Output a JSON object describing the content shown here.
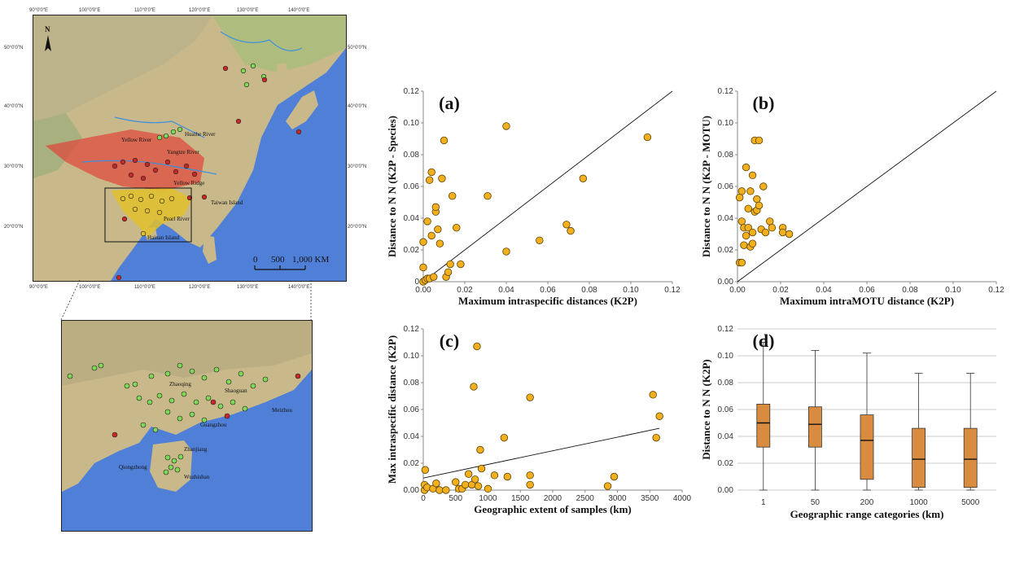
{
  "colors": {
    "point_fill": "#f2b01e",
    "point_stroke": "#5a4000",
    "box_fill": "#d98c3f",
    "sea": "#4f7fd6",
    "land": "#c9b98a",
    "range_red": "#e0453a",
    "range_yellow": "#e2c02a",
    "site_green": "#7ed957",
    "site_red": "#c62828"
  },
  "map_overview": {
    "top_lon_labels": [
      "90°0'0\"E",
      "100°0'0\"E",
      "110°0'0\"E",
      "120°0'0\"E",
      "130°0'0\"E",
      "140°0'0\"E"
    ],
    "bottom_lon_labels": [
      "90°0'0\"E",
      "100°0'0\"E",
      "110°0'0\"E",
      "120°0'0\"E",
      "130°0'0\"E",
      "140°0'0\"E"
    ],
    "lat_labels": [
      "50°0'0\"N",
      "40°0'0\"N",
      "30°0'0\"N",
      "20°0'0\"N"
    ],
    "north": "N",
    "places": [
      "Yellow River",
      "Huaihe River",
      "Yangtze River",
      "Yellow Ridge",
      "Taiwan Island",
      "Pearl River",
      "Hainan Island"
    ],
    "scale_labels": [
      "0",
      "500",
      "1,000 KM"
    ]
  },
  "map_inset": {
    "places": [
      "Qiongzhong",
      "Wuzhishan",
      "Zhanjiang",
      "Guangzhou",
      "Zhaoqing",
      "Shaoguan",
      "Meizhou"
    ]
  },
  "chart_data": [
    {
      "id": "a",
      "type": "scatter",
      "panel_label": "(a)",
      "xlabel": "Maximum intraspecific distances (K2P)",
      "ylabel": "Distance to N N (K2P - Species)",
      "xlim": [
        0,
        0.12
      ],
      "ylim": [
        0,
        0.12
      ],
      "xticks": [
        "0.00",
        "0.02",
        "0.04",
        "0.06",
        "0.08",
        "0.10",
        "0.12"
      ],
      "yticks": [
        "0",
        "0.02",
        "0.04",
        "0.06",
        "0.08",
        "0.10",
        "0.12"
      ],
      "line": [
        [
          0,
          0
        ],
        [
          0.12,
          0.12
        ]
      ],
      "points": [
        [
          0.0,
          0.0
        ],
        [
          0.001,
          0.001
        ],
        [
          0.002,
          0.002
        ],
        [
          0.003,
          0.002
        ],
        [
          0.005,
          0.003
        ],
        [
          0.0,
          0.009
        ],
        [
          0.0,
          0.025
        ],
        [
          0.002,
          0.038
        ],
        [
          0.003,
          0.064
        ],
        [
          0.004,
          0.029
        ],
        [
          0.004,
          0.069
        ],
        [
          0.006,
          0.044
        ],
        [
          0.006,
          0.047
        ],
        [
          0.007,
          0.033
        ],
        [
          0.008,
          0.024
        ],
        [
          0.009,
          0.065
        ],
        [
          0.01,
          0.089
        ],
        [
          0.011,
          0.003
        ],
        [
          0.012,
          0.006
        ],
        [
          0.013,
          0.011
        ],
        [
          0.014,
          0.054
        ],
        [
          0.016,
          0.034
        ],
        [
          0.018,
          0.011
        ],
        [
          0.031,
          0.054
        ],
        [
          0.04,
          0.098
        ],
        [
          0.04,
          0.019
        ],
        [
          0.056,
          0.026
        ],
        [
          0.069,
          0.036
        ],
        [
          0.071,
          0.032
        ],
        [
          0.077,
          0.065
        ],
        [
          0.108,
          0.091
        ]
      ]
    },
    {
      "id": "b",
      "type": "scatter",
      "panel_label": "(b)",
      "xlabel": "Maximum intraMOTU distance (K2P)",
      "ylabel": "Distance to N N (K2P - MOTU)",
      "xlim": [
        0,
        0.12
      ],
      "ylim": [
        0,
        0.12
      ],
      "xticks": [
        "0.00",
        "0.02",
        "0.04",
        "0.06",
        "0.08",
        "0.10",
        "0.12"
      ],
      "yticks": [
        "0.00",
        "0.02",
        "0.04",
        "0.06",
        "0.08",
        "0.10",
        "0.12"
      ],
      "line": [
        [
          0,
          0
        ],
        [
          0.12,
          0.12
        ]
      ],
      "points": [
        [
          0.001,
          0.012
        ],
        [
          0.002,
          0.012
        ],
        [
          0.001,
          0.053
        ],
        [
          0.002,
          0.057
        ],
        [
          0.002,
          0.038
        ],
        [
          0.003,
          0.023
        ],
        [
          0.003,
          0.034
        ],
        [
          0.004,
          0.029
        ],
        [
          0.004,
          0.072
        ],
        [
          0.005,
          0.034
        ],
        [
          0.005,
          0.046
        ],
        [
          0.006,
          0.057
        ],
        [
          0.006,
          0.022
        ],
        [
          0.007,
          0.031
        ],
        [
          0.007,
          0.024
        ],
        [
          0.007,
          0.067
        ],
        [
          0.008,
          0.044
        ],
        [
          0.008,
          0.089
        ],
        [
          0.009,
          0.052
        ],
        [
          0.009,
          0.045
        ],
        [
          0.01,
          0.089
        ],
        [
          0.01,
          0.048
        ],
        [
          0.011,
          0.033
        ],
        [
          0.012,
          0.06
        ],
        [
          0.013,
          0.031
        ],
        [
          0.015,
          0.038
        ],
        [
          0.016,
          0.034
        ],
        [
          0.021,
          0.034
        ],
        [
          0.021,
          0.031
        ],
        [
          0.024,
          0.03
        ]
      ]
    },
    {
      "id": "c",
      "type": "scatter",
      "panel_label": "(c)",
      "xlabel": "Geographic extent of samples (km)",
      "ylabel": "Max intraspecific distance (K2P)",
      "xlim": [
        0,
        4000
      ],
      "ylim": [
        0,
        0.12
      ],
      "xticks": [
        "0",
        "500",
        "1000",
        "1500",
        "2000",
        "2500",
        "3000",
        "3500",
        "4000"
      ],
      "yticks": [
        "0.00",
        "0.02",
        "0.04",
        "0.06",
        "0.08",
        "0.10",
        "0.12"
      ],
      "line": [
        [
          0,
          0.009
        ],
        [
          3650,
          0.046
        ]
      ],
      "points": [
        [
          20,
          0.0
        ],
        [
          20,
          0.004
        ],
        [
          30,
          0.015
        ],
        [
          60,
          0.002
        ],
        [
          150,
          0.001
        ],
        [
          200,
          0.005
        ],
        [
          250,
          0.0
        ],
        [
          350,
          0.0
        ],
        [
          500,
          0.006
        ],
        [
          550,
          0.001
        ],
        [
          600,
          0.001
        ],
        [
          650,
          0.004
        ],
        [
          700,
          0.012
        ],
        [
          750,
          0.004
        ],
        [
          780,
          0.077
        ],
        [
          800,
          0.008
        ],
        [
          830,
          0.107
        ],
        [
          850,
          0.003
        ],
        [
          880,
          0.03
        ],
        [
          900,
          0.016
        ],
        [
          1000,
          0.001
        ],
        [
          1100,
          0.011
        ],
        [
          1250,
          0.039
        ],
        [
          1300,
          0.01
        ],
        [
          1650,
          0.069
        ],
        [
          1650,
          0.011
        ],
        [
          1650,
          0.004
        ],
        [
          2850,
          0.003
        ],
        [
          2950,
          0.01
        ],
        [
          3550,
          0.071
        ],
        [
          3600,
          0.039
        ],
        [
          3650,
          0.055
        ]
      ]
    },
    {
      "id": "d",
      "type": "box",
      "panel_label": "(d)",
      "xlabel": "Geographic range categories (km)",
      "ylabel": "Distance to N N (K2P)",
      "ylim": [
        0,
        0.12
      ],
      "yticks": [
        "0.00",
        "0.02",
        "0.04",
        "0.06",
        "0.08",
        "0.10",
        "0.12"
      ],
      "categories": [
        "1",
        "50",
        "200",
        "1000",
        "5000"
      ],
      "boxes": [
        {
          "min": 0.0,
          "q1": 0.032,
          "median": 0.05,
          "q3": 0.064,
          "max": 0.11
        },
        {
          "min": 0.0,
          "q1": 0.032,
          "median": 0.049,
          "q3": 0.062,
          "max": 0.104
        },
        {
          "min": 0.0,
          "q1": 0.008,
          "median": 0.037,
          "q3": 0.056,
          "max": 0.102
        },
        {
          "min": 0.0,
          "q1": 0.002,
          "median": 0.023,
          "q3": 0.046,
          "max": 0.087
        },
        {
          "min": 0.0,
          "q1": 0.002,
          "median": 0.023,
          "q3": 0.046,
          "max": 0.087
        }
      ]
    }
  ]
}
